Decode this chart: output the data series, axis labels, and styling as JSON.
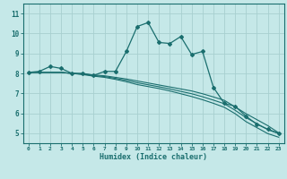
{
  "title": "",
  "xlabel": "Humidex (Indice chaleur)",
  "ylabel": "",
  "bg_color": "#c5e8e8",
  "grid_color": "#a8d0d0",
  "line_color": "#1a6e6e",
  "xlim": [
    -0.5,
    23.5
  ],
  "ylim": [
    4.5,
    11.5
  ],
  "yticks": [
    5,
    6,
    7,
    8,
    9,
    10,
    11
  ],
  "xticks": [
    0,
    1,
    2,
    3,
    4,
    5,
    6,
    7,
    8,
    9,
    10,
    11,
    12,
    13,
    14,
    15,
    16,
    17,
    18,
    19,
    20,
    21,
    22,
    23
  ],
  "lines": [
    {
      "x": [
        0,
        1,
        2,
        3,
        4,
        5,
        6,
        7,
        8,
        9,
        10,
        11,
        12,
        13,
        14,
        15,
        16,
        17,
        18,
        19,
        20,
        21,
        22,
        23
      ],
      "y": [
        8.05,
        8.1,
        8.35,
        8.25,
        8.0,
        8.0,
        7.9,
        8.1,
        8.1,
        9.1,
        10.35,
        10.55,
        9.55,
        9.5,
        9.85,
        8.95,
        9.1,
        7.3,
        6.5,
        6.35,
        5.85,
        5.45,
        5.2,
        5.0
      ],
      "has_markers": true
    },
    {
      "x": [
        0,
        1,
        2,
        3,
        4,
        5,
        6,
        7,
        8,
        9,
        10,
        11,
        12,
        13,
        14,
        15,
        16,
        17,
        18,
        19,
        20,
        21,
        22,
        23
      ],
      "y": [
        8.05,
        8.05,
        8.05,
        8.05,
        8.0,
        7.98,
        7.92,
        7.88,
        7.8,
        7.72,
        7.62,
        7.52,
        7.42,
        7.32,
        7.22,
        7.12,
        6.98,
        6.82,
        6.65,
        6.32,
        5.98,
        5.68,
        5.38,
        5.02
      ],
      "has_markers": false
    },
    {
      "x": [
        0,
        1,
        2,
        3,
        4,
        5,
        6,
        7,
        8,
        9,
        10,
        11,
        12,
        13,
        14,
        15,
        16,
        17,
        18,
        19,
        20,
        21,
        22,
        23
      ],
      "y": [
        8.05,
        8.05,
        8.05,
        8.05,
        8.0,
        7.96,
        7.89,
        7.84,
        7.75,
        7.65,
        7.53,
        7.43,
        7.33,
        7.22,
        7.1,
        6.98,
        6.83,
        6.66,
        6.48,
        6.15,
        5.78,
        5.48,
        5.18,
        4.98
      ],
      "has_markers": false
    },
    {
      "x": [
        0,
        1,
        2,
        3,
        4,
        5,
        6,
        7,
        8,
        9,
        10,
        11,
        12,
        13,
        14,
        15,
        16,
        17,
        18,
        19,
        20,
        21,
        22,
        23
      ],
      "y": [
        8.05,
        8.05,
        8.05,
        8.05,
        8.0,
        7.94,
        7.86,
        7.8,
        7.7,
        7.58,
        7.44,
        7.34,
        7.24,
        7.12,
        6.98,
        6.84,
        6.68,
        6.5,
        6.3,
        5.98,
        5.58,
        5.28,
        4.98,
        4.8
      ],
      "has_markers": false
    }
  ]
}
